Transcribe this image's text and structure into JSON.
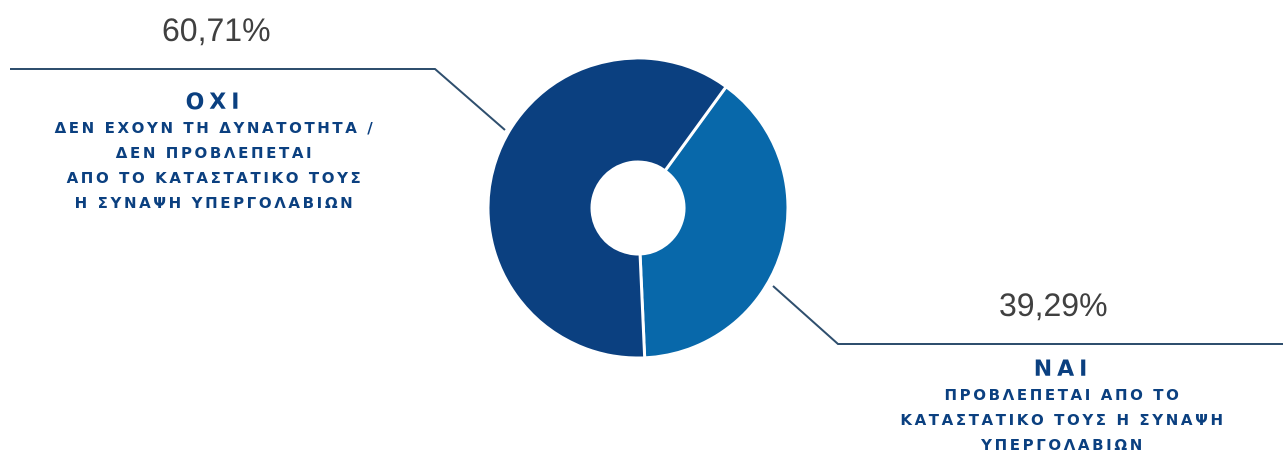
{
  "chart_data": {
    "type": "pie",
    "style": "donut",
    "title": "",
    "slices": [
      {
        "key": "nai",
        "value": 39.29,
        "label": "39,29%",
        "category": "ΝΑΙ",
        "description": [
          "ΠΡΟΒΛΕΠΕΤΑΙ ΑΠΟ ΤΟ",
          "ΚΑΤΑΣΤΑΤΙΚΟ ΤΟΥΣ Η ΣΥΝΑΨΗ",
          "ΥΠΕΡΓΟΛΑΒΙΩΝ"
        ],
        "color": "#0868aa"
      },
      {
        "key": "oxi",
        "value": 60.71,
        "label": "60,71%",
        "category": "ΟΧΙ",
        "description": [
          "ΔΕΝ ΕΧΟΥΝ ΤΗ ΔΥΝΑΤΟΤΗΤΑ /",
          "ΔΕΝ ΠΡΟΒΛΕΠΕΤΑΙ",
          "ΑΠΟ ΤΟ ΚΑΤΑΣΤΑΤΙΚΟ ΤΟΥΣ",
          "Η ΣΥΝΑΨΗ ΥΠΕΡΓΟΛΑΒΙΩΝ"
        ],
        "color": "#0b4080"
      }
    ],
    "label_color": "#0b4080",
    "leader_color": "#2f4f6e",
    "value_color": "#404040"
  }
}
